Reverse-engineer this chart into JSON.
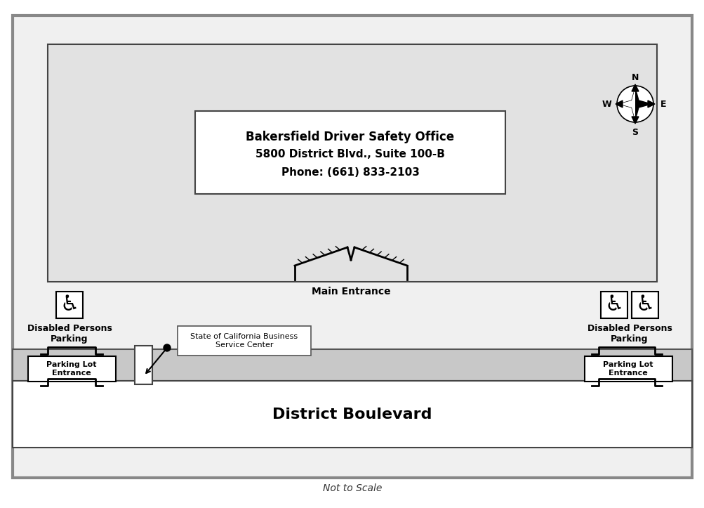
{
  "address_line1": "Bakersfield Driver Safety Office",
  "address_line2": "5800 District Blvd., Suite 100-B",
  "address_line3": "Phone: (661) 833-2103",
  "street_name": "District Boulevard",
  "note": "Not to Scale",
  "main_entrance_label": "Main Entrance",
  "disabled_left_label": "Disabled Persons\nParking",
  "disabled_right_label": "Disabled Persons\nParking",
  "parking_left_label": "Parking Lot\nEntrance",
  "parking_right_label": "Parking Lot\nEntrance",
  "callout_label": "State of California Business\nService Center",
  "bg_outer": "#e8e8e8",
  "bg_parking": "#e0e0e0",
  "bg_sidewalk": "#c8c8c8",
  "bg_white": "#ffffff",
  "border_dark": "#333333",
  "border_gray": "#888888",
  "text_color": "#000000"
}
